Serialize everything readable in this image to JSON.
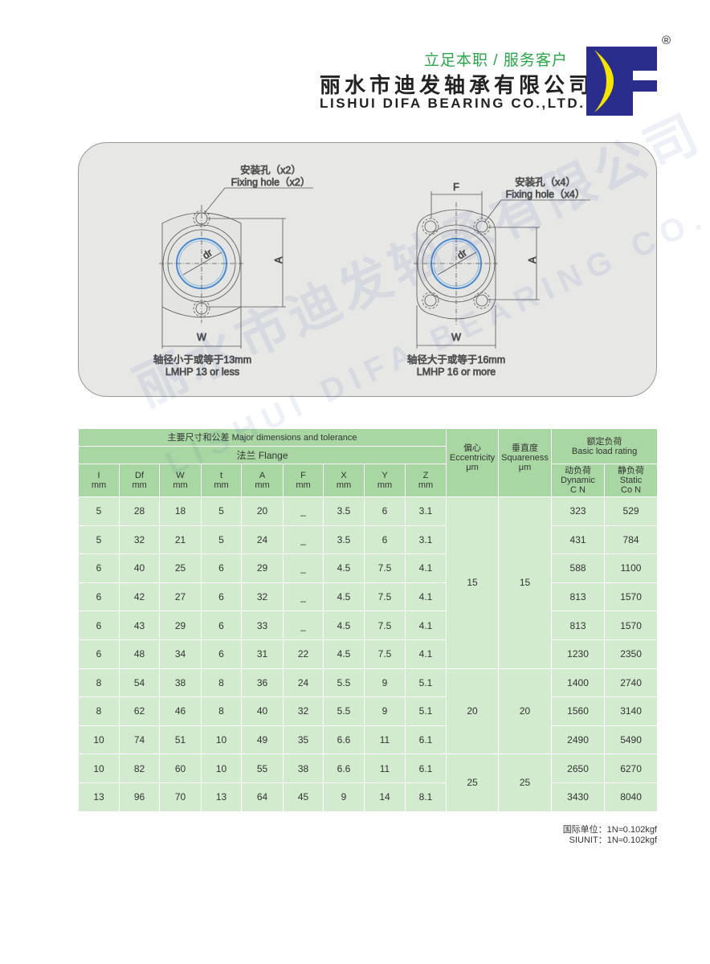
{
  "header": {
    "slogan": "立足本职 / 服务客户",
    "company_cn": "丽水市迪发轴承有限公司",
    "company_en": "LISHUI DIFA BEARING CO.,LTD.",
    "logo_text": "DF",
    "registered_mark": "®",
    "logo_colors": {
      "blue": "#2a2d8c",
      "yellow": "#f5e400"
    }
  },
  "diagram": {
    "left": {
      "hole_cn": "安装孔（x2）",
      "hole_en": "Fixing hole（x2）",
      "dim_dr": "dr",
      "dim_a": "A",
      "dim_w": "W",
      "caption_cn": "轴径小于或等于13mm",
      "caption_en": "LMHP 13 or less"
    },
    "right": {
      "hole_cn": "安装孔（x4）",
      "hole_en": "Fixing hole（x4）",
      "dim_f": "F",
      "dim_dr": "dr",
      "dim_a": "A",
      "dim_w": "W",
      "caption_cn": "轴径大于或等于16mm",
      "caption_en": "LMHP 16 or more"
    }
  },
  "watermark": {
    "cn": "丽水市迪发轴承有限公司",
    "en": "LISHUI DIFA BEARING CO.,LTD."
  },
  "table": {
    "group_major": "主要尺寸和公差 Major dimensions and tolerance",
    "group_flange": "法兰 Flange",
    "eccentricity": {
      "cn": "偏心",
      "en": "Eccentricity",
      "unit": "μm"
    },
    "squareness": {
      "cn": "垂直度",
      "en": "Squareness",
      "unit": "μm"
    },
    "load": {
      "cn": "额定负荷",
      "en": "Basic load rating"
    },
    "dynamic": {
      "cn": "动负荷",
      "en": "Dynamic",
      "unit": "C N"
    },
    "static": {
      "cn": "静负荷",
      "en": "Static",
      "unit": "Co N"
    },
    "columns": [
      {
        "name": "I",
        "unit": "mm"
      },
      {
        "name": "Df",
        "unit": "mm"
      },
      {
        "name": "W",
        "unit": "mm"
      },
      {
        "name": "t",
        "unit": "mm"
      },
      {
        "name": "A",
        "unit": "mm"
      },
      {
        "name": "F",
        "unit": "mm"
      },
      {
        "name": "X",
        "unit": "mm"
      },
      {
        "name": "Y",
        "unit": "mm"
      },
      {
        "name": "Z",
        "unit": "mm"
      }
    ],
    "rows": [
      [
        "5",
        "28",
        "18",
        "5",
        "20",
        "_",
        "3.5",
        "6",
        "3.1",
        "323",
        "529"
      ],
      [
        "5",
        "32",
        "21",
        "5",
        "24",
        "_",
        "3.5",
        "6",
        "3.1",
        "431",
        "784"
      ],
      [
        "6",
        "40",
        "25",
        "6",
        "29",
        "_",
        "4.5",
        "7.5",
        "4.1",
        "588",
        "1100"
      ],
      [
        "6",
        "42",
        "27",
        "6",
        "32",
        "_",
        "4.5",
        "7.5",
        "4.1",
        "813",
        "1570"
      ],
      [
        "6",
        "43",
        "29",
        "6",
        "33",
        "_",
        "4.5",
        "7.5",
        "4.1",
        "813",
        "1570"
      ],
      [
        "6",
        "48",
        "34",
        "6",
        "31",
        "22",
        "4.5",
        "7.5",
        "4.1",
        "1230",
        "2350"
      ],
      [
        "8",
        "54",
        "38",
        "8",
        "36",
        "24",
        "5.5",
        "9",
        "5.1",
        "1400",
        "2740"
      ],
      [
        "8",
        "62",
        "46",
        "8",
        "40",
        "32",
        "5.5",
        "9",
        "5.1",
        "1560",
        "3140"
      ],
      [
        "10",
        "74",
        "51",
        "10",
        "49",
        "35",
        "6.6",
        "11",
        "6.1",
        "2490",
        "5490"
      ],
      [
        "10",
        "82",
        "60",
        "10",
        "55",
        "38",
        "6.6",
        "11",
        "6.1",
        "2650",
        "6270"
      ],
      [
        "13",
        "96",
        "70",
        "13",
        "64",
        "45",
        "9",
        "14",
        "8.1",
        "3430",
        "8040"
      ]
    ],
    "merged": [
      {
        "ecc": "15",
        "sq": "15"
      },
      {
        "ecc": "20",
        "sq": "20"
      },
      {
        "ecc": "25",
        "sq": "25"
      }
    ]
  },
  "note": {
    "cn": "国际单位：1N≈0.102kgf",
    "en": "SIUNIT：1N≈0.102kgf"
  }
}
